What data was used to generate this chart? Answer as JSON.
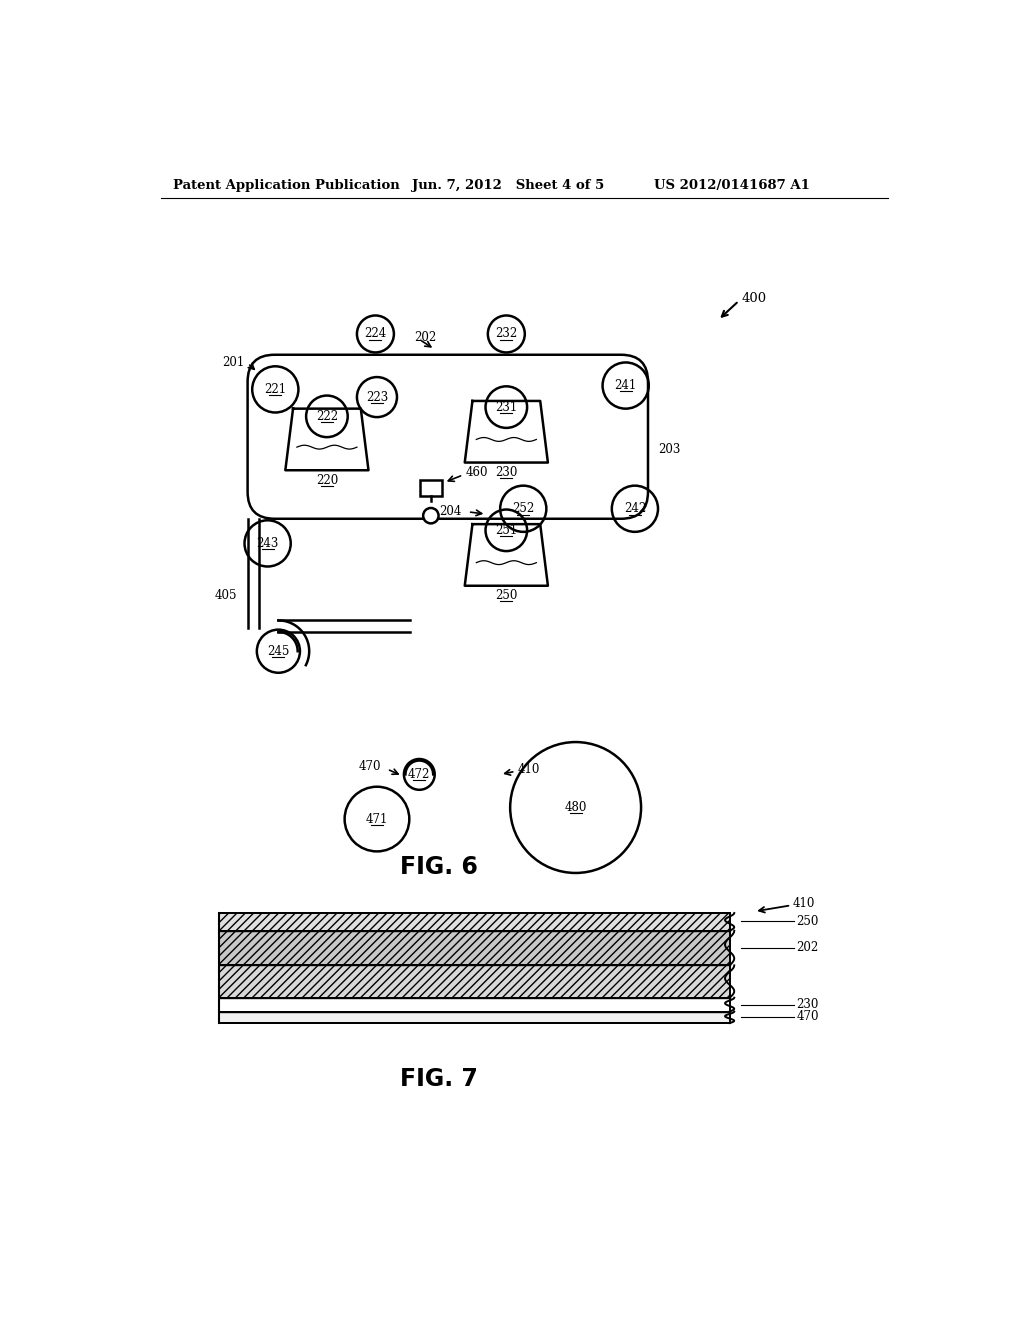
{
  "header_left": "Patent Application Publication",
  "header_mid": "Jun. 7, 2012   Sheet 4 of 5",
  "header_right": "US 2012/0141687 A1",
  "fig6_label": "FIG. 6",
  "fig7_label": "FIG. 7",
  "bg_color": "#ffffff",
  "line_color": "#000000"
}
